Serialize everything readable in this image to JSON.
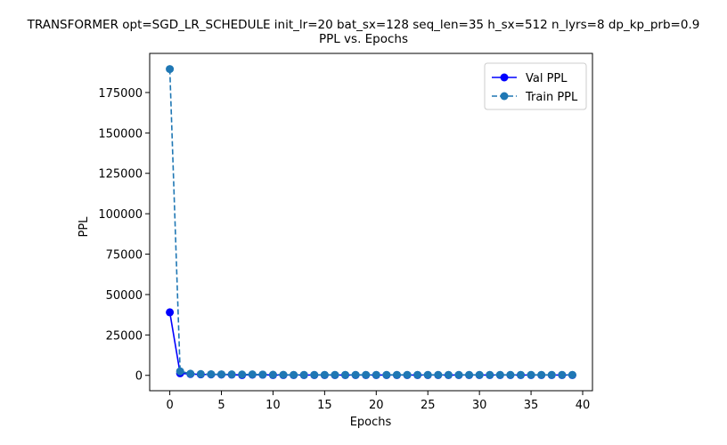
{
  "chart_data": {
    "type": "line",
    "title": "TRANSFORMER opt=SGD_LR_SCHEDULE init_lr=20 bat_sx=128 seq_len=35 h_sx=512 n_lyrs=8 dp_kp_prb=0.9",
    "subtitle": "PPL vs. Epochs",
    "xlabel": "Epochs",
    "ylabel": "PPL",
    "xlim": [
      -1.95,
      40.95
    ],
    "ylim": [
      -9500,
      199200
    ],
    "xticks": [
      0,
      5,
      10,
      15,
      20,
      25,
      30,
      35,
      40
    ],
    "yticks": [
      0,
      25000,
      50000,
      75000,
      100000,
      125000,
      150000,
      175000
    ],
    "legend_position": "top-right",
    "grid": false,
    "x": [
      0,
      1,
      2,
      3,
      4,
      5,
      6,
      7,
      8,
      9,
      10,
      11,
      12,
      13,
      14,
      15,
      16,
      17,
      18,
      19,
      20,
      21,
      22,
      23,
      24,
      25,
      26,
      27,
      28,
      29,
      30,
      31,
      32,
      33,
      34,
      35,
      36,
      37,
      38,
      39
    ],
    "series": [
      {
        "name": "Val PPL",
        "color": "#0000ff",
        "line_style": "solid",
        "marker": "circle",
        "values": [
          39000,
          1300,
          800,
          600,
          550,
          500,
          450,
          180,
          420,
          380,
          200,
          200,
          200,
          200,
          200,
          200,
          200,
          200,
          200,
          200,
          200,
          200,
          200,
          200,
          200,
          200,
          200,
          200,
          200,
          200,
          200,
          200,
          200,
          200,
          200,
          200,
          200,
          200,
          200,
          200
        ]
      },
      {
        "name": "Train PPL",
        "color": "#1f77b4",
        "line_style": "dashed",
        "marker": "circle",
        "values": [
          189500,
          2500,
          1000,
          800,
          700,
          650,
          600,
          550,
          600,
          500,
          400,
          350,
          300,
          300,
          300,
          300,
          300,
          300,
          300,
          300,
          300,
          300,
          300,
          300,
          300,
          300,
          300,
          300,
          300,
          300,
          300,
          300,
          300,
          300,
          300,
          300,
          300,
          300,
          300,
          300
        ]
      }
    ]
  }
}
